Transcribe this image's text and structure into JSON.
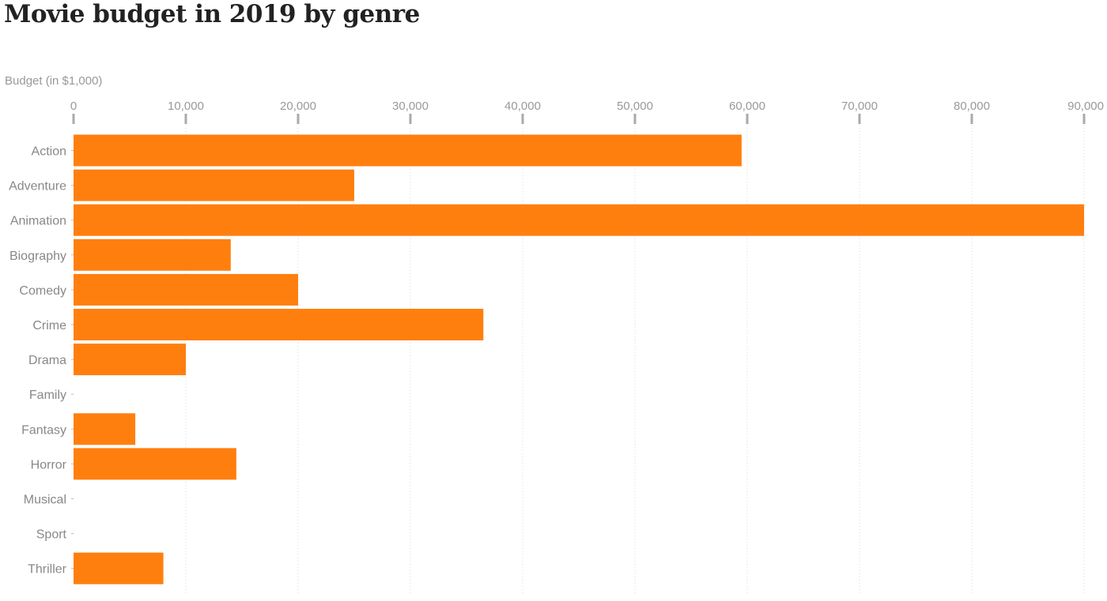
{
  "chart_data": {
    "type": "bar",
    "orientation": "horizontal",
    "title": "Movie budget in 2019 by genre",
    "xlabel": "Budget (in $1,000)",
    "ylabel": "",
    "xlim": [
      0,
      90000
    ],
    "xticks": [
      0,
      10000,
      20000,
      30000,
      40000,
      50000,
      60000,
      70000,
      80000,
      90000
    ],
    "xtick_labels": [
      "0",
      "10,000",
      "20,000",
      "30,000",
      "40,000",
      "50,000",
      "60,000",
      "70,000",
      "80,000",
      "90,000"
    ],
    "categories": [
      "Action",
      "Adventure",
      "Animation",
      "Biography",
      "Comedy",
      "Crime",
      "Drama",
      "Family",
      "Fantasy",
      "Horror",
      "Musical",
      "Sport",
      "Thriller"
    ],
    "values": [
      59500,
      25000,
      90000,
      14000,
      20000,
      36500,
      10000,
      0,
      5500,
      14500,
      0,
      0,
      8000
    ],
    "bar_color": "#ff7f0e",
    "grid": true,
    "grid_axis": "x",
    "xaxis_position": "top"
  }
}
